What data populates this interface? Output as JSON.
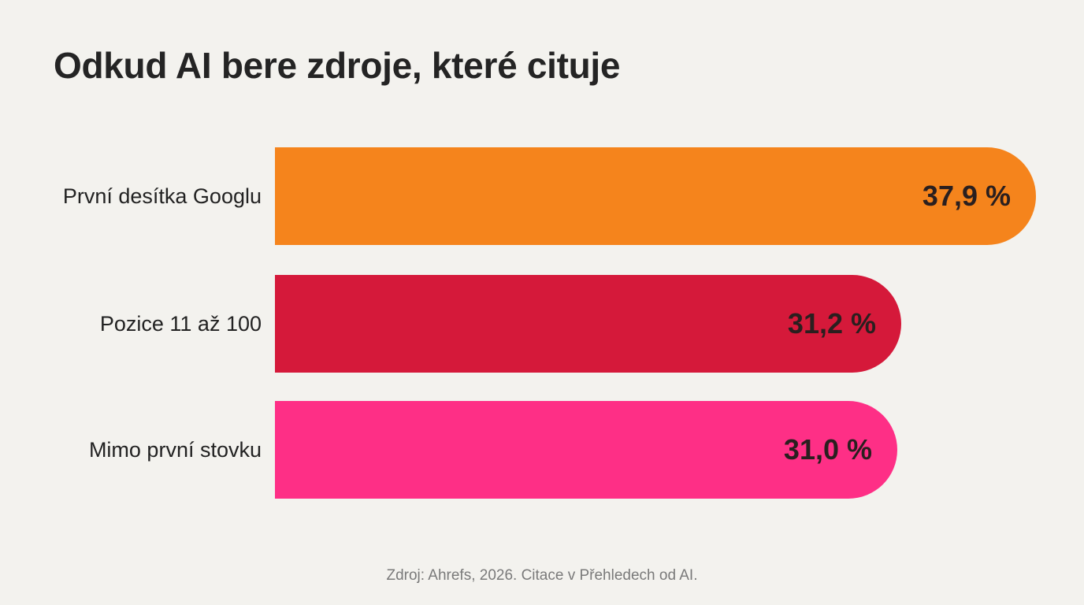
{
  "chart_data": {
    "type": "bar",
    "orientation": "horizontal",
    "title": "Odkud AI bere zdroje, které cituje",
    "categories": [
      "První desítka Googlu",
      "Pozice 11 až 100",
      "Mimo první stovku"
    ],
    "values": [
      37.9,
      31.2,
      31.0
    ],
    "value_labels": [
      "37,9 %",
      "31,2 %",
      "31,0 %"
    ],
    "colors": [
      "#f5841c",
      "#d5193a",
      "#fe2f86"
    ],
    "xlim": [
      0,
      37.9
    ],
    "grid": false,
    "legend": "none",
    "source": "Zdroj: Ahrefs, 2026. Citace v Přehledech od AI."
  }
}
